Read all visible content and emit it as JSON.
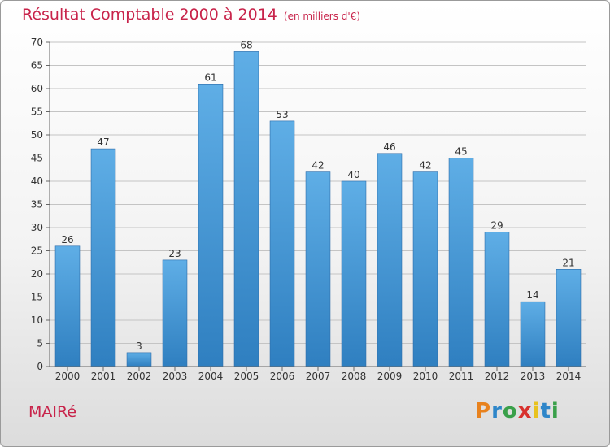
{
  "header": {
    "title": "Résultat Comptable 2000 à 2014",
    "unit": "(en milliers d'€)"
  },
  "footer": {
    "commune": "MAIRé",
    "brand": "Proxiti"
  },
  "colors": {
    "bar_top": "#5faee6",
    "bar_bottom": "#2f7fc0",
    "title": "#c8234a"
  },
  "chart_data": {
    "type": "bar",
    "title": "Résultat Comptable 2000 à 2014",
    "subtitle": "(en milliers d'€)",
    "xlabel": "",
    "ylabel": "",
    "categories": [
      "2000",
      "2001",
      "2002",
      "2003",
      "2004",
      "2005",
      "2006",
      "2007",
      "2008",
      "2009",
      "2010",
      "2011",
      "2012",
      "2013",
      "2014"
    ],
    "values": [
      26,
      47,
      3,
      23,
      61,
      68,
      53,
      42,
      40,
      46,
      42,
      45,
      29,
      14,
      21
    ],
    "ylim": [
      0,
      70
    ],
    "yticks": [
      0,
      5,
      10,
      15,
      20,
      25,
      30,
      35,
      40,
      45,
      50,
      55,
      60,
      65,
      70
    ],
    "grid": true
  }
}
